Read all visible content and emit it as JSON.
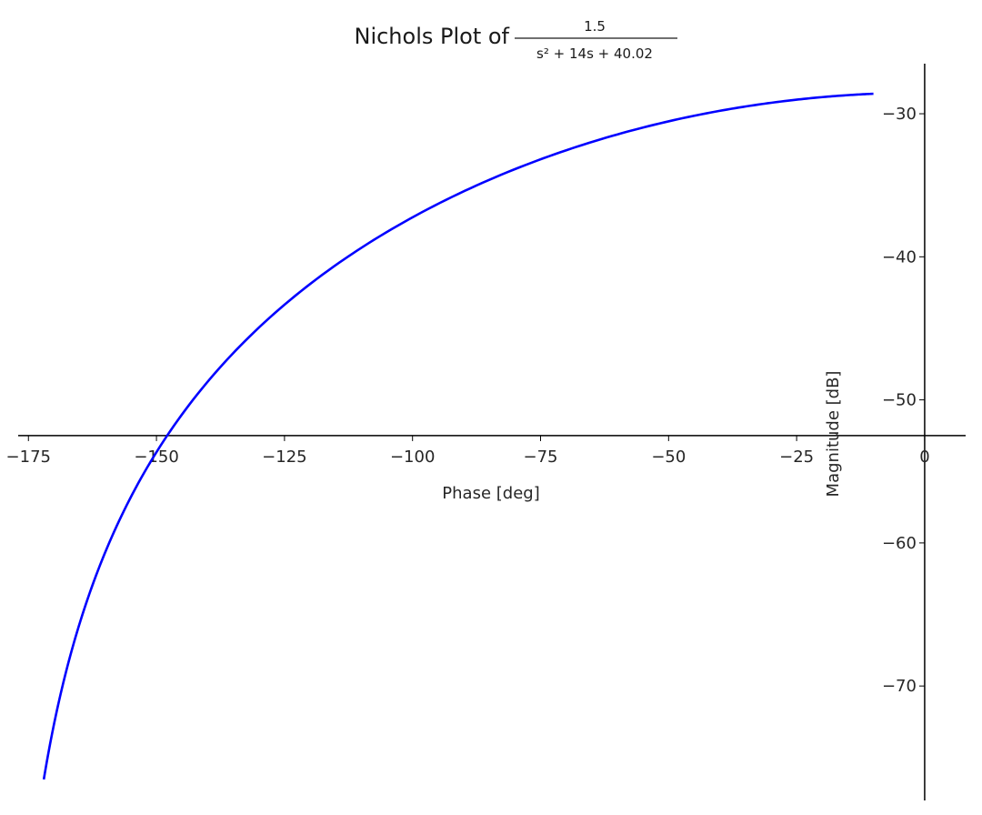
{
  "chart_data": {
    "type": "line",
    "title": {
      "prefix": "Nichols Plot of",
      "numerator": "1.5",
      "denominator": "s² + 14s + 40.02"
    },
    "xlabel": "Phase [deg]",
    "ylabel": "Magnitude [dB]",
    "xlim": [
      -177,
      8
    ],
    "ylim": [
      -78,
      -26.5
    ],
    "xticks": [
      -175,
      -150,
      -125,
      -100,
      -75,
      -50,
      -25,
      0
    ],
    "xtick_labels": [
      "−175",
      "−150",
      "−125",
      "−100",
      "−75",
      "−50",
      "−25",
      "0"
    ],
    "yticks": [
      -30,
      -40,
      -50,
      -60,
      -70
    ],
    "ytick_labels": [
      "−30",
      "−40",
      "−50",
      "−60",
      "−70"
    ],
    "grid": false,
    "spines": "centered at origin",
    "series": [
      {
        "color": "#0000ff",
        "transfer_function": {
          "gain": 1.5,
          "a1": 14,
          "a0": 40.02
        },
        "points": [
          [
            -172.0,
            -76.7
          ],
          [
            -170.0,
            -72.4
          ],
          [
            -165.0,
            -65.2
          ],
          [
            -160.0,
            -59.9
          ],
          [
            -155.0,
            -55.8
          ],
          [
            -150.0,
            -52.6
          ],
          [
            -145.0,
            -50.0
          ],
          [
            -140.0,
            -47.8
          ],
          [
            -130.0,
            -44.2
          ],
          [
            -120.0,
            -41.4
          ],
          [
            -110.0,
            -39.0
          ],
          [
            -100.0,
            -37.0
          ],
          [
            -90.0,
            -35.3
          ],
          [
            -80.0,
            -33.8
          ],
          [
            -70.0,
            -32.6
          ],
          [
            -60.0,
            -31.6
          ],
          [
            -50.0,
            -30.7
          ],
          [
            -40.0,
            -30.0
          ],
          [
            -30.0,
            -29.4
          ],
          [
            -20.0,
            -28.9
          ],
          [
            -10.0,
            -28.6
          ],
          [
            0.0,
            -28.5
          ]
        ]
      }
    ]
  }
}
